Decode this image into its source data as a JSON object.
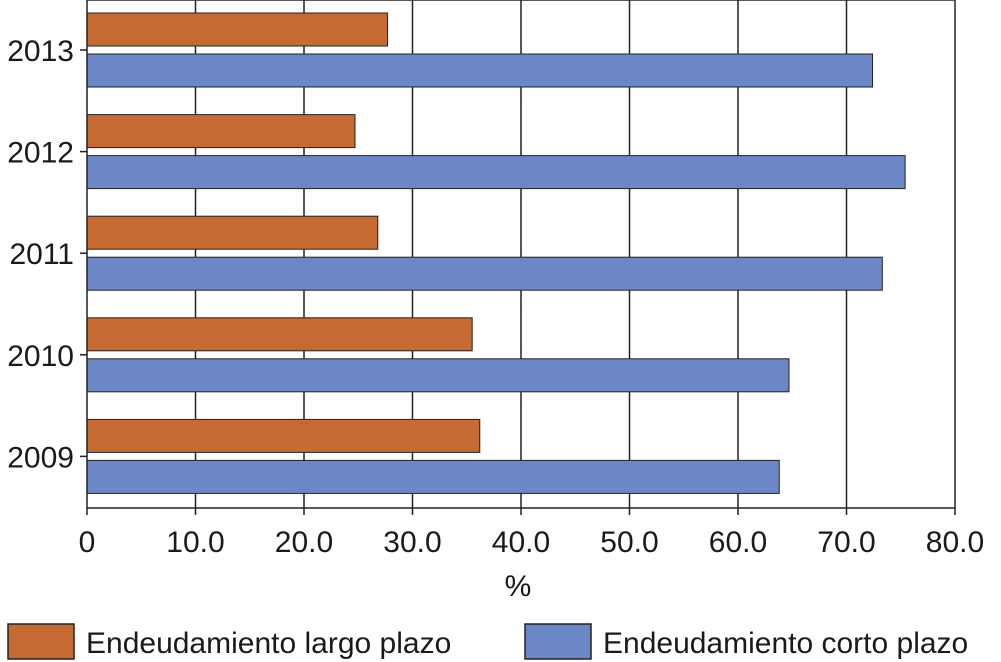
{
  "chart_data": {
    "type": "bar",
    "orientation": "horizontal",
    "categories": [
      "2013",
      "2012",
      "2011",
      "2010",
      "2009"
    ],
    "series": [
      {
        "name": "Endeudamiento largo plazo",
        "color": "#c66a33",
        "values": [
          27.7,
          24.7,
          26.8,
          35.5,
          36.2
        ]
      },
      {
        "name": "Endeudamiento corto plazo",
        "color": "#6b87c6",
        "values": [
          72.4,
          75.4,
          73.3,
          64.7,
          63.8
        ]
      }
    ],
    "xlabel": "%",
    "xlim": [
      0,
      80
    ],
    "xticks": [
      "0",
      "10.0",
      "20.0",
      "30.0",
      "40.0",
      "50.0",
      "60.0",
      "70.0",
      "80.0"
    ],
    "grid": "vertical",
    "legend_position": "bottom"
  }
}
